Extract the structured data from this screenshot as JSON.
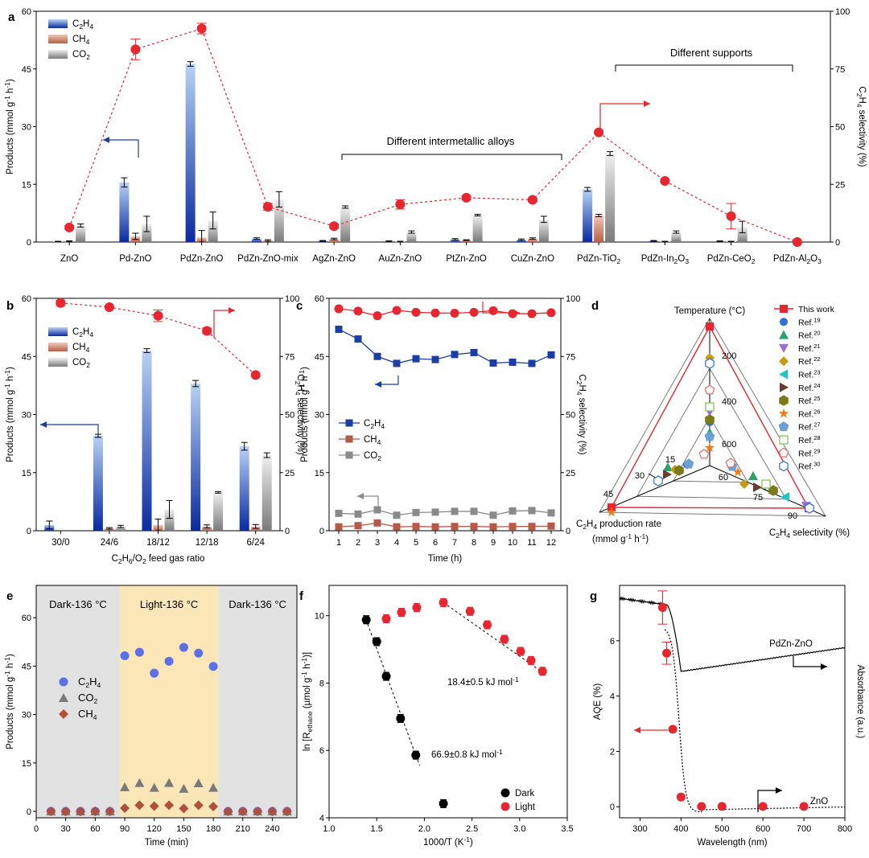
{
  "chart_data": [
    {
      "id": "a",
      "panel_label": "a",
      "type": "bar",
      "categories": [
        "ZnO",
        "Pd-ZnO",
        "PdZn-ZnO",
        "PdZn-ZnO-mix",
        "AgZn-ZnO",
        "AuZn-ZnO",
        "PtZn-ZnO",
        "CuZn-ZnO",
        "PdZn-TiO",
        "PdZn-In",
        "PdZn-CeO",
        "PdZn-Al"
      ],
      "category_subscripts": [
        "",
        "",
        "",
        "",
        "",
        "",
        "",
        "",
        "2",
        "2O3",
        "2",
        "2O3"
      ],
      "series": [
        {
          "name": "C2H4",
          "values": [
            0.1,
            15.5,
            46.3,
            0.9,
            0.3,
            0.2,
            0.7,
            0.6,
            13.7,
            0.3,
            0.2,
            0
          ],
          "errors": [
            0.1,
            1.2,
            0.6,
            0.2,
            0.1,
            0.1,
            0.2,
            0.2,
            0.5,
            0.1,
            0.1,
            0
          ]
        },
        {
          "name": "CH4",
          "values": [
            0.2,
            1.5,
            1.2,
            0.4,
            0.8,
            0.1,
            0.5,
            0.9,
            6.9,
            0.1,
            0.1,
            0
          ],
          "errors": [
            0.1,
            0.8,
            1.8,
            0.2,
            0.2,
            0.1,
            0.1,
            0.2,
            0.3,
            0.1,
            0.1,
            0
          ]
        },
        {
          "name": "CO2",
          "values": [
            4.3,
            4.7,
            5.6,
            11.1,
            9.1,
            2.6,
            7.0,
            5.9,
            23.0,
            2.6,
            3.9,
            0
          ],
          "errors": [
            0.4,
            2.0,
            2.2,
            2.0,
            0.3,
            0.3,
            0.2,
            0.8,
            0.5,
            0.3,
            1.5,
            0
          ]
        }
      ],
      "selectivity": {
        "values": [
          6.3,
          83.5,
          92.5,
          15.3,
          6.9,
          16.3,
          19.2,
          18.3,
          47.5,
          26.5,
          11.2,
          0
        ],
        "errors": [
          0.8,
          4.5,
          2.3,
          1.5,
          0.8,
          2.0,
          0.8,
          0.8,
          0.5,
          0.5,
          5.5,
          0
        ]
      },
      "ylabel": "Products (mmol g-1 h-1)",
      "ylim": [
        0,
        60
      ],
      "yticks": [
        0,
        15,
        30,
        45,
        60
      ],
      "y2label": "C2H4 selectivity (%)",
      "y2lim": [
        0,
        100
      ],
      "y2ticks": [
        0,
        25,
        50,
        75,
        100
      ],
      "legend": [
        "C2H4",
        "CH4",
        "CO2"
      ],
      "annotations": [
        "Different intermetallic alloys",
        "Different supports"
      ]
    },
    {
      "id": "b",
      "panel_label": "b",
      "type": "bar",
      "categories": [
        "30/0",
        "24/6",
        "18/12",
        "12/18",
        "6/24"
      ],
      "series": [
        {
          "name": "C2H4",
          "values": [
            1.5,
            24.5,
            46.5,
            38.0,
            21.8
          ],
          "errors": [
            1.0,
            0.4,
            0.5,
            0.8,
            1.0
          ]
        },
        {
          "name": "CH4",
          "values": [
            0,
            0.6,
            1.5,
            1.1,
            1.1
          ],
          "errors": [
            0,
            0.2,
            1.5,
            0.4,
            0.5
          ]
        },
        {
          "name": "CO2",
          "values": [
            0,
            1.1,
            5.5,
            9.9,
            19.5
          ],
          "errors": [
            0,
            0.3,
            2.3,
            0.2,
            0.6
          ]
        }
      ],
      "selectivity": {
        "values": [
          98,
          96.2,
          92.5,
          86,
          67
        ],
        "errors": [
          1.2,
          0.8,
          2.5,
          1.2,
          0.8
        ]
      },
      "xlabel": "C2H6/O2 feed gas ratio",
      "ylabel": "Products (mmol g-1 h-1)",
      "ylim": [
        0,
        60
      ],
      "yticks": [
        0,
        15,
        30,
        45,
        60
      ],
      "y2label": "C2H4 selectivity (%)",
      "y2lim": [
        0,
        100
      ],
      "y2ticks": [
        0,
        25,
        50,
        75,
        100
      ],
      "legend": [
        "C2H4",
        "CH4",
        "CO2"
      ]
    },
    {
      "id": "c",
      "panel_label": "c",
      "type": "line",
      "x": [
        1,
        2,
        3,
        4,
        5,
        6,
        7,
        8,
        9,
        10,
        11,
        12
      ],
      "series": [
        {
          "name": "C2H4",
          "values": [
            52,
            49.5,
            45,
            43.2,
            44.4,
            44.2,
            45.5,
            46,
            43.3,
            43.5,
            43.2,
            45.4
          ]
        },
        {
          "name": "CH4",
          "values": [
            1.0,
            1.3,
            2.0,
            1.0,
            1.1,
            1.0,
            1.1,
            1.1,
            1.0,
            1.1,
            1.1,
            1.2
          ]
        },
        {
          "name": "CO2",
          "values": [
            4.5,
            4.3,
            5.4,
            4.0,
            4.7,
            4.8,
            5.0,
            5.0,
            4.0,
            5.1,
            5.2,
            4.6
          ]
        },
        {
          "name": "selectivity",
          "values": [
            95.5,
            94.5,
            92.5,
            94.8,
            94.0,
            93.7,
            93.6,
            94.0,
            94.7,
            93.4,
            93.4,
            93.8
          ]
        }
      ],
      "xlabel": "Time (h)",
      "ylabel": "Products (mmol g-1 h-1)",
      "ylim": [
        0,
        60
      ],
      "yticks": [
        0,
        15,
        30,
        45,
        60
      ],
      "y2label": "C2H4 selectivity (%)",
      "y2lim": [
        0,
        100
      ],
      "y2ticks": [
        0,
        25,
        50,
        75,
        100
      ],
      "legend": [
        "C2H4",
        "CH4",
        "CO2"
      ]
    },
    {
      "id": "d",
      "panel_label": "d",
      "type": "scatter",
      "axes": [
        {
          "label": "Temperature (°C)",
          "ticks": [
            "200",
            "400",
            "600"
          ]
        },
        {
          "label": "C2H4 production rate (mmol g-1 h-1)",
          "ticks": [
            "15",
            "30",
            "45"
          ]
        },
        {
          "label": "C2H4 selectivity (%)",
          "ticks": [
            "60",
            "75",
            "90"
          ]
        }
      ],
      "legend": [
        "This work",
        "Ref.19",
        "Ref.20",
        "Ref.21",
        "Ref.22",
        "Ref.23",
        "Ref.24",
        "Ref.25",
        "Ref.26",
        "Ref.27",
        "Ref.28",
        "Ref.29",
        "Ref.30"
      ]
    },
    {
      "id": "e",
      "panel_label": "e",
      "type": "scatter",
      "x": [
        15,
        30,
        45,
        60,
        75,
        90,
        105,
        120,
        135,
        150,
        165,
        180,
        195,
        210,
        225,
        240,
        255
      ],
      "series": [
        {
          "name": "C2H4",
          "values": [
            0,
            0,
            0,
            0,
            0,
            48.2,
            49.3,
            42.8,
            46.5,
            50.8,
            49.0,
            44.9,
            0,
            0,
            0,
            0,
            0
          ]
        },
        {
          "name": "CO2",
          "values": [
            0,
            0,
            0,
            0,
            0,
            7.5,
            8.8,
            7.3,
            8.8,
            7.0,
            8.7,
            7.3,
            0,
            0,
            0,
            0,
            0
          ]
        },
        {
          "name": "CH4",
          "values": [
            0,
            0,
            0,
            0,
            0,
            1.0,
            1.9,
            1.6,
            1.9,
            0.9,
            1.9,
            1.5,
            0,
            0,
            0,
            0,
            0
          ]
        }
      ],
      "regions": [
        {
          "label": "Dark-136 °C",
          "x": [
            0,
            85
          ]
        },
        {
          "label": "Light-136 °C",
          "x": [
            85,
            185
          ]
        },
        {
          "label": "Dark-136 °C",
          "x": [
            185,
            265
          ]
        }
      ],
      "xlabel": "Time (min)",
      "ylabel": "Products (mmol g-1 h-1)",
      "xlim": [
        0,
        265
      ],
      "xticks": [
        0,
        30,
        60,
        90,
        120,
        150,
        180,
        210,
        240
      ],
      "ylim": [
        -2,
        70
      ],
      "yticks": [
        0,
        15,
        30,
        45,
        60,
        70
      ],
      "legend": [
        "C2H4",
        "CO2",
        "CH4"
      ]
    },
    {
      "id": "f",
      "panel_label": "f",
      "type": "scatter",
      "series": [
        {
          "name": "Dark",
          "x": [
            1.39,
            1.5,
            1.6,
            1.75,
            1.91,
            2.2
          ],
          "y": [
            9.88,
            9.23,
            8.2,
            6.95,
            5.86,
            4.42
          ]
        },
        {
          "name": "Light",
          "x": [
            1.6,
            1.76,
            1.92,
            2.2,
            2.48,
            2.66,
            2.84,
            3.01,
            3.12,
            3.24
          ],
          "y": [
            9.91,
            10.1,
            10.24,
            10.39,
            10.13,
            9.73,
            9.3,
            8.94,
            8.67,
            8.35
          ]
        }
      ],
      "annotations": [
        "18.4±0.5 kJ mol-1",
        "66.9±0.8 kJ mol-1"
      ],
      "xlabel": "1000/T (K-1)",
      "ylabel": "ln [Rethane (µmol g-1 h-1)]",
      "xlim": [
        1.0,
        3.5
      ],
      "xticks": [
        1.0,
        1.5,
        2.0,
        2.5,
        3.0,
        3.5
      ],
      "ylim": [
        4,
        10.9
      ],
      "yticks": [
        4,
        6,
        8,
        10
      ],
      "legend": [
        "Dark",
        "Light"
      ]
    },
    {
      "id": "g",
      "panel_label": "g",
      "type": "scatter",
      "series": [
        {
          "name": "AQE",
          "x": [
            355,
            365,
            380,
            400,
            450,
            500,
            600,
            700
          ],
          "y": [
            7.2,
            5.55,
            2.8,
            0.35,
            0.01,
            0.01,
            0.01,
            0.01
          ],
          "errors": [
            0.6,
            0.4,
            0,
            0,
            0,
            0,
            0,
            0
          ]
        }
      ],
      "curves": [
        "PdZn-ZnO",
        "ZnO"
      ],
      "xlabel": "Wavelength (nm)",
      "ylabel": "AQE (%)",
      "y2label": "Absorbance (a.u.)",
      "xlim": [
        250,
        800
      ],
      "xticks": [
        300,
        400,
        500,
        600,
        700,
        800
      ],
      "ylim": [
        -0.4,
        8
      ],
      "yticks": [
        0,
        2,
        4,
        6
      ]
    }
  ]
}
